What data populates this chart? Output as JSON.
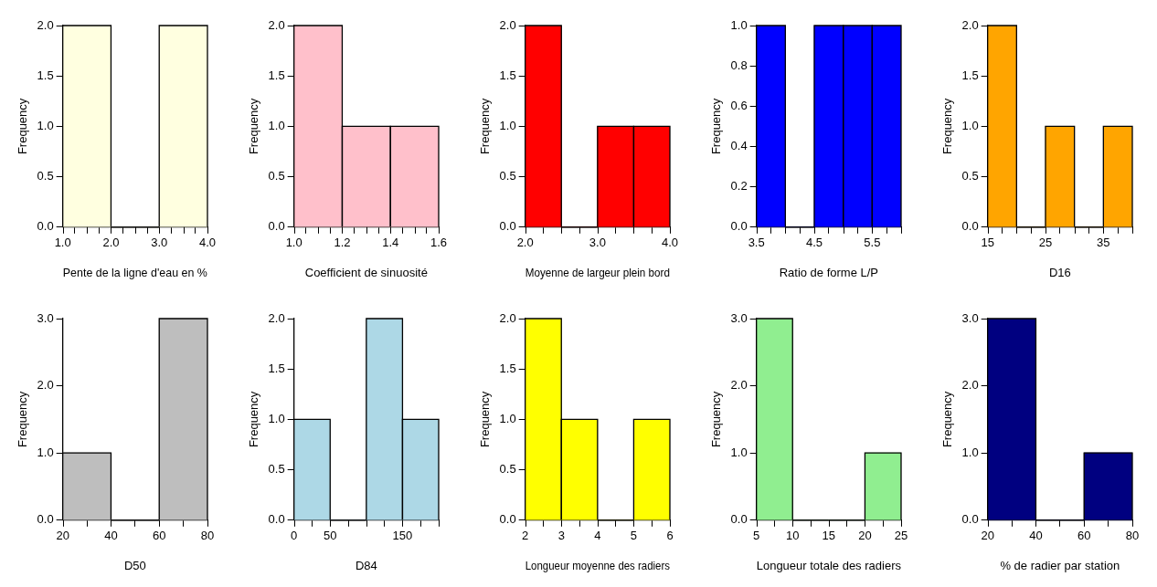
{
  "chart_data": [
    {
      "type": "histogram",
      "xlabel": "Pente de la ligne d'eau en %",
      "ylabel": "Frequency",
      "bins": [
        1,
        2,
        3,
        4
      ],
      "values": [
        2,
        0,
        2
      ],
      "color": "#ffffe0",
      "xlim": [
        1,
        4
      ],
      "xticks": [
        {
          "value": 1,
          "label": "1.0"
        },
        {
          "value": 1.5,
          "label": null
        },
        {
          "value": 2,
          "label": "2.0"
        },
        {
          "value": 2.5,
          "label": null
        },
        {
          "value": 3,
          "label": "3.0"
        },
        {
          "value": 3.5,
          "label": null
        },
        {
          "value": 4,
          "label": "4.0"
        }
      ],
      "ylim": [
        0,
        2
      ],
      "yticks": [
        {
          "value": 0,
          "label": "0.0"
        },
        0.5,
        {
          "value": 1,
          "label": "1.0"
        },
        1.5,
        {
          "value": 2,
          "label": "2.0"
        }
      ],
      "grid": false,
      "legend": false
    },
    {
      "type": "histogram",
      "xlabel": "Coefficient de sinuosité",
      "ylabel": "Frequency",
      "bins": [
        1,
        1.2,
        1.4,
        1.6
      ],
      "values": [
        2,
        1,
        1
      ],
      "color": "#ffc0cb",
      "xlim": [
        1,
        1.6
      ],
      "xticks": [
        {
          "value": 1,
          "label": "1.0"
        },
        {
          "value": 1.1,
          "label": null
        },
        1.2,
        {
          "value": 1.3,
          "label": null
        },
        1.4,
        {
          "value": 1.5,
          "label": null
        },
        1.6
      ],
      "ylim": [
        0,
        2
      ],
      "yticks": [
        {
          "value": 0,
          "label": "0.0"
        },
        0.5,
        {
          "value": 1,
          "label": "1.0"
        },
        1.5,
        {
          "value": 2,
          "label": "2.0"
        }
      ],
      "grid": false,
      "legend": false
    },
    {
      "type": "histogram",
      "xlabel": "Moyenne de largeur plein bord",
      "ylabel": "Frequency",
      "bins": [
        2,
        2.5,
        3,
        3.5,
        4
      ],
      "values": [
        2,
        0,
        1,
        1
      ],
      "color": "#ff0000",
      "xlim": [
        2,
        4
      ],
      "xticks": [
        {
          "value": 2,
          "label": "2.0"
        },
        {
          "value": 2.5,
          "label": null
        },
        {
          "value": 3,
          "label": "3.0"
        },
        {
          "value": 3.5,
          "label": null
        },
        {
          "value": 4,
          "label": "4.0"
        }
      ],
      "ylim": [
        0,
        2
      ],
      "yticks": [
        {
          "value": 0,
          "label": "0.0"
        },
        0.5,
        {
          "value": 1,
          "label": "1.0"
        },
        1.5,
        {
          "value": 2,
          "label": "2.0"
        }
      ],
      "grid": false,
      "legend": false
    },
    {
      "type": "histogram",
      "xlabel": "Ratio de forme L/P",
      "ylabel": "Frequency",
      "bins": [
        3.5,
        4,
        4.5,
        5,
        5.5,
        6
      ],
      "values": [
        1,
        0,
        1,
        1,
        1
      ],
      "color": "#0000ff",
      "xlim": [
        3.5,
        6
      ],
      "xticks": [
        3.5,
        {
          "value": 4,
          "label": null
        },
        4.5,
        {
          "value": 5,
          "label": null
        },
        5.5,
        {
          "value": 6,
          "label": null
        }
      ],
      "ylim": [
        0,
        1
      ],
      "yticks": [
        {
          "value": 0,
          "label": "0.0"
        },
        0.2,
        0.4,
        0.6,
        0.8,
        {
          "value": 1,
          "label": "1.0"
        }
      ],
      "grid": false,
      "legend": false
    },
    {
      "type": "histogram",
      "xlabel": "D16",
      "ylabel": "Frequency",
      "bins": [
        15,
        20,
        25,
        30,
        35,
        40
      ],
      "values": [
        2,
        0,
        1,
        0,
        1
      ],
      "color": "#ffa500",
      "xlim": [
        15,
        40
      ],
      "xticks": [
        15,
        {
          "value": 20,
          "label": null
        },
        25,
        {
          "value": 30,
          "label": null
        },
        35,
        {
          "value": 40,
          "label": null
        }
      ],
      "ylim": [
        0,
        2
      ],
      "yticks": [
        {
          "value": 0,
          "label": "0.0"
        },
        0.5,
        {
          "value": 1,
          "label": "1.0"
        },
        1.5,
        {
          "value": 2,
          "label": "2.0"
        }
      ],
      "grid": false,
      "legend": false
    },
    {
      "type": "histogram",
      "xlabel": "D50",
      "ylabel": "Frequency",
      "bins": [
        20,
        40,
        60,
        80
      ],
      "values": [
        1,
        0,
        3
      ],
      "color": "#bebebe",
      "xlim": [
        20,
        80
      ],
      "xticks": [
        20,
        40,
        60,
        80
      ],
      "ylim": [
        0,
        3
      ],
      "yticks": [
        {
          "value": 0,
          "label": "0.0"
        },
        {
          "value": 1,
          "label": "1.0"
        },
        {
          "value": 2,
          "label": "2.0"
        },
        {
          "value": 3,
          "label": "3.0"
        }
      ],
      "grid": false,
      "legend": false
    },
    {
      "type": "histogram",
      "xlabel": "D84",
      "ylabel": "Frequency",
      "bins": [
        0,
        50,
        100,
        150,
        200
      ],
      "values": [
        1,
        0,
        2,
        1
      ],
      "color": "#add8e6",
      "xlim": [
        0,
        200
      ],
      "xticks": [
        0,
        50,
        {
          "value": 100,
          "label": null
        },
        150,
        {
          "value": 200,
          "label": null
        }
      ],
      "ylim": [
        0,
        2
      ],
      "yticks": [
        {
          "value": 0,
          "label": "0.0"
        },
        0.5,
        {
          "value": 1,
          "label": "1.0"
        },
        1.5,
        {
          "value": 2,
          "label": "2.0"
        }
      ],
      "grid": false,
      "legend": false
    },
    {
      "type": "histogram",
      "xlabel": "Longueur moyenne des radiers",
      "ylabel": "Frequency",
      "bins": [
        2,
        3,
        4,
        5,
        6
      ],
      "values": [
        2,
        1,
        0,
        1
      ],
      "color": "#ffff00",
      "xlim": [
        2,
        6
      ],
      "xticks": [
        2,
        3,
        4,
        5,
        6
      ],
      "ylim": [
        0,
        2
      ],
      "yticks": [
        {
          "value": 0,
          "label": "0.0"
        },
        0.5,
        {
          "value": 1,
          "label": "1.0"
        },
        1.5,
        {
          "value": 2,
          "label": "2.0"
        }
      ],
      "grid": false,
      "legend": false
    },
    {
      "type": "histogram",
      "xlabel": "Longueur totale des radiers",
      "ylabel": "Frequency",
      "bins": [
        5,
        10,
        15,
        20,
        25
      ],
      "values": [
        3,
        0,
        0,
        1
      ],
      "color": "#90ee90",
      "xlim": [
        5,
        25
      ],
      "xticks": [
        5,
        10,
        15,
        20,
        25
      ],
      "ylim": [
        0,
        3
      ],
      "yticks": [
        {
          "value": 0,
          "label": "0.0"
        },
        {
          "value": 1,
          "label": "1.0"
        },
        {
          "value": 2,
          "label": "2.0"
        },
        {
          "value": 3,
          "label": "3.0"
        }
      ],
      "grid": false,
      "legend": false
    },
    {
      "type": "histogram",
      "xlabel": "% de radier par station",
      "ylabel": "Frequency",
      "bins": [
        20,
        40,
        60,
        80
      ],
      "values": [
        3,
        0,
        1
      ],
      "color": "#000080",
      "xlim": [
        20,
        80
      ],
      "xticks": [
        20,
        40,
        60,
        80
      ],
      "ylim": [
        0,
        3
      ],
      "yticks": [
        {
          "value": 0,
          "label": "0.0"
        },
        {
          "value": 1,
          "label": "1.0"
        },
        {
          "value": 2,
          "label": "2.0"
        },
        {
          "value": 3,
          "label": "3.0"
        }
      ],
      "grid": false,
      "legend": false
    }
  ]
}
